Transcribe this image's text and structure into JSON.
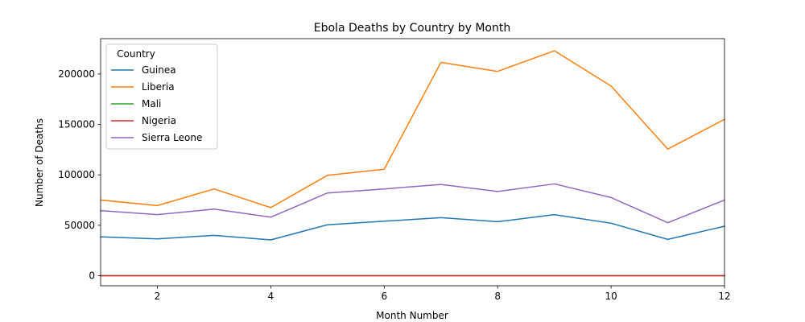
{
  "chart_data": {
    "type": "line",
    "title": "Ebola Deaths by Country by Month",
    "xlabel": "Month Number",
    "ylabel": "Number of Deaths",
    "xlim": [
      1,
      12
    ],
    "ylim": [
      -10000,
      235000
    ],
    "x": [
      1,
      2,
      3,
      4,
      5,
      6,
      7,
      8,
      9,
      10,
      11,
      12
    ],
    "xticks": [
      2,
      4,
      6,
      8,
      10,
      12
    ],
    "yticks": [
      0,
      50000,
      100000,
      150000,
      200000
    ],
    "grid": false,
    "legend": {
      "title": "Country",
      "placement": "top-left"
    },
    "series": [
      {
        "name": "Guinea",
        "color": "#1f77b4",
        "values": [
          38500,
          36500,
          40000,
          35500,
          50500,
          54000,
          57500,
          53500,
          60500,
          52000,
          36000,
          49000
        ]
      },
      {
        "name": "Liberia",
        "color": "#ff7f0e",
        "values": [
          75000,
          69500,
          86000,
          67500,
          99500,
          105500,
          211500,
          202500,
          223000,
          188000,
          125500,
          155000
        ]
      },
      {
        "name": "Mali",
        "color": "#2ca02c",
        "values": [
          0,
          0,
          0,
          0,
          0,
          0,
          0,
          0,
          0,
          0,
          0,
          0
        ]
      },
      {
        "name": "Nigeria",
        "color": "#d62728",
        "values": [
          0,
          0,
          0,
          0,
          0,
          0,
          0,
          0,
          0,
          0,
          0,
          0
        ]
      },
      {
        "name": "Sierra Leone",
        "color": "#9467bd",
        "values": [
          64500,
          60500,
          66000,
          58000,
          82000,
          86000,
          90500,
          83500,
          91000,
          77500,
          52500,
          75000
        ]
      }
    ]
  }
}
